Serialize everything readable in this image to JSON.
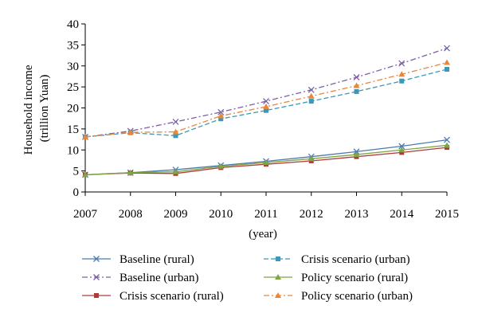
{
  "chart_data": {
    "type": "line",
    "title": "",
    "xlabel": "(year)",
    "ylabel": [
      "Household income",
      "(trillion Yuan)"
    ],
    "x": [
      2007,
      2008,
      2009,
      2010,
      2011,
      2012,
      2013,
      2014,
      2015
    ],
    "x_ticks": [
      "2007",
      "2008",
      "2009",
      "2010",
      "2011",
      "2012",
      "2013",
      "2014",
      "2015"
    ],
    "ylim": [
      0,
      40
    ],
    "y_ticks": [
      "0",
      "5",
      "10",
      "15",
      "20",
      "25",
      "30",
      "35",
      "40"
    ],
    "grid": false,
    "legend_position": "bottom, two columns",
    "series": [
      {
        "name": "Baseline (rural)",
        "color": "#4a7ab0",
        "dash": "solid",
        "marker": "x",
        "values": [
          4.1,
          4.6,
          5.3,
          6.3,
          7.3,
          8.4,
          9.6,
          10.9,
          12.4
        ]
      },
      {
        "name": "Baseline (urban)",
        "color": "#7d5fa8",
        "dash": "dashdot",
        "marker": "x",
        "values": [
          13.1,
          14.5,
          16.7,
          19.0,
          21.6,
          24.3,
          27.3,
          30.6,
          34.2
        ]
      },
      {
        "name": "Crisis scenario (rural)",
        "color": "#b03a36",
        "dash": "solid",
        "marker": "square",
        "values": [
          4.1,
          4.5,
          4.4,
          5.8,
          6.6,
          7.4,
          8.4,
          9.4,
          10.6
        ]
      },
      {
        "name": "Crisis scenario (urban)",
        "color": "#3a98b8",
        "dash": "dashed",
        "marker": "square",
        "values": [
          13.1,
          14.1,
          13.4,
          17.4,
          19.4,
          21.6,
          23.9,
          26.4,
          29.2
        ]
      },
      {
        "name": "Policy scenario (rural)",
        "color": "#7fa545",
        "dash": "solid",
        "marker": "triangle",
        "values": [
          4.1,
          4.6,
          4.8,
          6.1,
          7.0,
          7.9,
          8.9,
          10.0,
          11.1
        ]
      },
      {
        "name": "Policy scenario (urban)",
        "color": "#e8873a",
        "dash": "dashdot",
        "marker": "triangle",
        "values": [
          13.1,
          14.2,
          14.3,
          18.1,
          20.3,
          22.8,
          25.3,
          28.0,
          30.8
        ]
      }
    ]
  }
}
